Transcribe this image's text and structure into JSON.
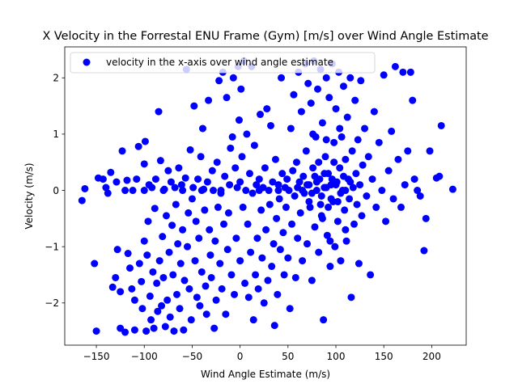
{
  "chart_data": {
    "type": "scatter",
    "title": "X Velocity in the Forrestal ENU Frame (Gym) [m/s] over Wind Angle Estimate",
    "xlabel": "Wind Angle Estimate (m/s)",
    "ylabel": "Velocity (m/s)",
    "xlim": [
      -183,
      236
    ],
    "ylim": [
      -2.75,
      2.55
    ],
    "xticks": [
      -150,
      -100,
      -50,
      0,
      50,
      100,
      150,
      200
    ],
    "yticks": [
      -2,
      -1,
      0,
      1,
      2
    ],
    "grid": false,
    "legend_position": "upper-left",
    "series": [
      {
        "name": "velocity in the x-axis over wind angle estimate",
        "color": "#0000ff",
        "points": [
          [
            -165,
            -0.18
          ],
          [
            -162,
            0.03
          ],
          [
            -152,
            -1.3
          ],
          [
            -150,
            -2.5
          ],
          [
            -148,
            0.22
          ],
          [
            -143,
            0.2
          ],
          [
            -140,
            0.05
          ],
          [
            -138,
            -0.05
          ],
          [
            -135,
            0.32
          ],
          [
            -133,
            -1.72
          ],
          [
            -130,
            -1.55
          ],
          [
            -129,
            0.15
          ],
          [
            -128,
            -1.05
          ],
          [
            -125,
            -1.8
          ],
          [
            -125,
            -2.45
          ],
          [
            -123,
            0.7
          ],
          [
            -120,
            -2.52
          ],
          [
            -118,
            0.18
          ],
          [
            -117,
            -1.12
          ],
          [
            -115,
            -1.38
          ],
          [
            -113,
            -1.75
          ],
          [
            -112,
            0.0
          ],
          [
            -110,
            -1.95
          ],
          [
            -110,
            -2.48
          ],
          [
            -108,
            0.2
          ],
          [
            -106,
            0.78
          ],
          [
            -105,
            -1.3
          ],
          [
            -103,
            -1.62
          ],
          [
            -102,
            -2.1
          ],
          [
            -100,
            0.47
          ],
          [
            -100,
            -0.9
          ],
          [
            -99,
            0.87
          ],
          [
            -98,
            -2.5
          ],
          [
            -97,
            -1.15
          ],
          [
            -96,
            -0.55
          ],
          [
            -95,
            0.1
          ],
          [
            -94,
            -1.88
          ],
          [
            -93,
            -2.3
          ],
          [
            -92,
            0.05
          ],
          [
            -91,
            -1.45
          ],
          [
            -90,
            -2.45
          ],
          [
            -89,
            -0.32
          ],
          [
            -88,
            0.2
          ],
          [
            -87,
            -1.65
          ],
          [
            -86,
            -2.15
          ],
          [
            -85,
            1.4
          ],
          [
            -84,
            -1.25
          ],
          [
            -83,
            0.53
          ],
          [
            -82,
            -2.05
          ],
          [
            -81,
            -0.82
          ],
          [
            -80,
            -1.55
          ],
          [
            -79,
            0.02
          ],
          [
            -78,
            -2.42
          ],
          [
            -77,
            -0.45
          ],
          [
            -76,
            -1.95
          ],
          [
            -75,
            0.35
          ],
          [
            -74,
            -1.1
          ],
          [
            -73,
            -2.25
          ],
          [
            -72,
            0.15
          ],
          [
            -71,
            -0.62
          ],
          [
            -70,
            -1.5
          ],
          [
            -69,
            -2.5
          ],
          [
            -68,
            0.05
          ],
          [
            -67,
            -0.25
          ],
          [
            -66,
            -1.85
          ],
          [
            -65,
            -0.95
          ],
          [
            -64,
            0.4
          ],
          [
            -63,
            -2.1
          ],
          [
            -62,
            -1.3
          ],
          [
            -61,
            0.1
          ],
          [
            -60,
            -0.7
          ],
          [
            -59,
            -2.48
          ],
          [
            -58,
            -1.6
          ],
          [
            -57,
            0.22
          ],
          [
            -56,
            2.15
          ],
          [
            -55,
            -1.0
          ],
          [
            -54,
            -0.4
          ],
          [
            -53,
            -1.75
          ],
          [
            -52,
            0.72
          ],
          [
            -51,
            -2.3
          ],
          [
            -50,
            -0.15
          ],
          [
            -49,
            0.05
          ],
          [
            -48,
            1.5
          ],
          [
            -47,
            -1.25
          ],
          [
            -46,
            -0.55
          ],
          [
            -45,
            -1.9
          ],
          [
            -44,
            0.2
          ],
          [
            -43,
            -0.85
          ],
          [
            -42,
            -2.05
          ],
          [
            -41,
            0.6
          ],
          [
            -40,
            -1.45
          ],
          [
            -39,
            1.1
          ],
          [
            -38,
            0.02
          ],
          [
            -37,
            -0.35
          ],
          [
            -36,
            -1.7
          ],
          [
            -35,
            -2.2
          ],
          [
            -34,
            0.15
          ],
          [
            -33,
            1.6
          ],
          [
            -32,
            -0.7
          ],
          [
            -31,
            -1.15
          ],
          [
            -30,
            -1.55
          ],
          [
            -29,
            0.35
          ],
          [
            -28,
            0.0
          ],
          [
            -27,
            -2.45
          ],
          [
            -26,
            -0.9
          ],
          [
            -25,
            -1.95
          ],
          [
            -24,
            0.5
          ],
          [
            -23,
            -0.3
          ],
          [
            -22,
            1.95
          ],
          [
            -21,
            -1.3
          ],
          [
            -20,
            -0.05
          ],
          [
            -19,
            -1.75
          ],
          [
            -18,
            2.1
          ],
          [
            -17,
            -0.6
          ],
          [
            -16,
            0.25
          ],
          [
            -15,
            -2.2
          ],
          [
            -14,
            1.65
          ],
          [
            -13,
            -1.05
          ],
          [
            -12,
            -0.4
          ],
          [
            -11,
            0.1
          ],
          [
            -10,
            0.75
          ],
          [
            -9,
            -1.5
          ],
          [
            -8,
            0.95
          ],
          [
            -7,
            2.0
          ],
          [
            -6,
            -1.85
          ],
          [
            -5,
            0.4
          ],
          [
            -4,
            -0.85
          ],
          [
            -3,
            0.05
          ],
          [
            -2,
            2.2
          ],
          [
            -1,
            1.25
          ],
          [
            0,
            -1.25
          ],
          [
            0,
            0.15
          ],
          [
            1,
            1.8
          ],
          [
            2,
            0.6
          ],
          [
            3,
            -0.3
          ],
          [
            4,
            2.3
          ],
          [
            5,
            -1.65
          ],
          [
            6,
            0.0
          ],
          [
            7,
            1.0
          ],
          [
            8,
            -0.6
          ],
          [
            9,
            -1.9
          ],
          [
            10,
            0.3
          ],
          [
            11,
            -1.1
          ],
          [
            12,
            2.2
          ],
          [
            13,
            -0.05
          ],
          [
            14,
            -2.3
          ],
          [
            15,
            0.8
          ],
          [
            16,
            -1.5
          ],
          [
            17,
            0.1
          ],
          [
            18,
            -0.85
          ],
          [
            19,
            -1.75
          ],
          [
            20,
            0.2
          ],
          [
            21,
            1.35
          ],
          [
            22,
            -0.35
          ],
          [
            23,
            -1.2
          ],
          [
            24,
            0.05
          ],
          [
            25,
            -2.0
          ],
          [
            26,
            0.4
          ],
          [
            27,
            -0.7
          ],
          [
            28,
            1.45
          ],
          [
            29,
            -1.6
          ],
          [
            30,
            0.0
          ],
          [
            31,
            -0.25
          ],
          [
            32,
            1.15
          ],
          [
            33,
            -1.35
          ],
          [
            34,
            0.15
          ],
          [
            35,
            -0.95
          ],
          [
            36,
            -2.4
          ],
          [
            37,
            0.55
          ],
          [
            38,
            -0.5
          ],
          [
            39,
            -1.85
          ],
          [
            40,
            0.1
          ],
          [
            41,
            -0.15
          ],
          [
            42,
            -1.05
          ],
          [
            43,
            2.0
          ],
          [
            44,
            0.3
          ],
          [
            45,
            -0.75
          ],
          [
            46,
            -1.5
          ],
          [
            47,
            0.05
          ],
          [
            48,
            -0.3
          ],
          [
            49,
            0.2
          ],
          [
            50,
            -1.2
          ],
          [
            51,
            0.0
          ],
          [
            52,
            -2.1
          ],
          [
            53,
            1.1
          ],
          [
            54,
            -0.6
          ],
          [
            55,
            0.35
          ],
          [
            56,
            1.7
          ],
          [
            57,
            -0.1
          ],
          [
            58,
            -1.55
          ],
          [
            59,
            0.5
          ],
          [
            60,
            -0.85
          ],
          [
            61,
            2.1
          ],
          [
            62,
            0.15
          ],
          [
            63,
            -0.4
          ],
          [
            64,
            1.4
          ],
          [
            65,
            -1.25
          ],
          [
            66,
            0.25
          ],
          [
            67,
            -0.05
          ],
          [
            68,
            2.25
          ],
          [
            69,
            0.7
          ],
          [
            70,
            -0.95
          ],
          [
            71,
            1.9
          ],
          [
            72,
            0.1
          ],
          [
            73,
            -0.3
          ],
          [
            74,
            1.55
          ],
          [
            75,
            -1.6
          ],
          [
            76,
            0.4
          ],
          [
            77,
            2.3
          ],
          [
            78,
            -0.65
          ],
          [
            79,
            0.95
          ],
          [
            80,
            0.0
          ],
          [
            81,
            1.8
          ],
          [
            82,
            -1.1
          ],
          [
            83,
            0.2
          ],
          [
            84,
            2.15
          ],
          [
            85,
            -0.45
          ],
          [
            86,
            1.2
          ],
          [
            87,
            -2.3
          ],
          [
            88,
            0.05
          ],
          [
            89,
            0.6
          ],
          [
            90,
            2.0
          ],
          [
            91,
            -0.8
          ],
          [
            92,
            0.3
          ],
          [
            93,
            1.65
          ],
          [
            94,
            -1.35
          ],
          [
            95,
            0.1
          ],
          [
            96,
            2.25
          ],
          [
            97,
            -0.2
          ],
          [
            98,
            0.85
          ],
          [
            99,
            -1.0
          ],
          [
            100,
            1.45
          ],
          [
            101,
            0.15
          ],
          [
            102,
            -0.55
          ],
          [
            103,
            2.1
          ],
          [
            104,
            0.4
          ],
          [
            105,
            -1.25
          ],
          [
            106,
            0.95
          ],
          [
            107,
            0.0
          ],
          [
            108,
            1.85
          ],
          [
            109,
            -0.35
          ],
          [
            110,
            0.55
          ],
          [
            111,
            -0.9
          ],
          [
            112,
            1.3
          ],
          [
            113,
            0.2
          ],
          [
            114,
            -0.15
          ],
          [
            115,
            2.0
          ],
          [
            116,
            -1.9
          ],
          [
            117,
            0.7
          ],
          [
            118,
            0.05
          ],
          [
            119,
            -0.6
          ],
          [
            120,
            1.6
          ],
          [
            121,
            0.3
          ],
          [
            122,
            -0.25
          ],
          [
            123,
            0.9
          ],
          [
            124,
            -1.3
          ],
          [
            125,
            0.1
          ],
          [
            126,
            1.95
          ],
          [
            127,
            -0.45
          ],
          [
            128,
            0.45
          ],
          [
            130,
            1.1
          ],
          [
            132,
            -0.1
          ],
          [
            134,
            0.6
          ],
          [
            136,
            -1.5
          ],
          [
            138,
            0.2
          ],
          [
            140,
            1.4
          ],
          [
            142,
            -0.3
          ],
          [
            145,
            0.85
          ],
          [
            148,
            0.0
          ],
          [
            150,
            2.05
          ],
          [
            152,
            -0.55
          ],
          [
            155,
            0.35
          ],
          [
            158,
            1.05
          ],
          [
            160,
            -0.15
          ],
          [
            162,
            2.2
          ],
          [
            165,
            0.55
          ],
          [
            168,
            -0.3
          ],
          [
            170,
            2.1
          ],
          [
            172,
            0.1
          ],
          [
            175,
            0.7
          ],
          [
            178,
            2.1
          ],
          [
            180,
            1.6
          ],
          [
            182,
            0.2
          ],
          [
            185,
            0.0
          ],
          [
            188,
            -0.1
          ],
          [
            192,
            -1.07
          ],
          [
            194,
            -0.5
          ],
          [
            198,
            0.7
          ],
          [
            205,
            0.22
          ],
          [
            208,
            0.25
          ],
          [
            210,
            1.15
          ],
          [
            222,
            0.02
          ],
          [
            60,
            0.05
          ],
          [
            65,
            0.0
          ],
          [
            70,
            0.1
          ],
          [
            75,
            -0.05
          ],
          [
            80,
            0.15
          ],
          [
            85,
            -0.1
          ],
          [
            90,
            0.05
          ],
          [
            95,
            -0.15
          ],
          [
            100,
            0.1
          ],
          [
            105,
            -0.05
          ],
          [
            110,
            0.0
          ],
          [
            115,
            0.15
          ],
          [
            72,
            -0.2
          ],
          [
            78,
            0.25
          ],
          [
            84,
            -0.25
          ],
          [
            88,
            0.3
          ],
          [
            92,
            -0.3
          ],
          [
            96,
            0.2
          ],
          [
            102,
            -0.2
          ],
          [
            108,
            0.25
          ],
          [
            76,
            1.0
          ],
          [
            82,
            0.5
          ],
          [
            86,
            -0.5
          ],
          [
            90,
            0.9
          ],
          [
            94,
            -0.9
          ],
          [
            98,
            0.5
          ],
          [
            104,
            1.1
          ],
          [
            110,
            -0.7
          ],
          [
            -60,
            0.0
          ],
          [
            -40,
            0.0
          ],
          [
            -20,
            0.0
          ],
          [
            20,
            0.0
          ],
          [
            40,
            0.0
          ],
          [
            -80,
            0.0
          ],
          [
            -100,
            0.0
          ],
          [
            -120,
            0.0
          ]
        ]
      }
    ]
  }
}
